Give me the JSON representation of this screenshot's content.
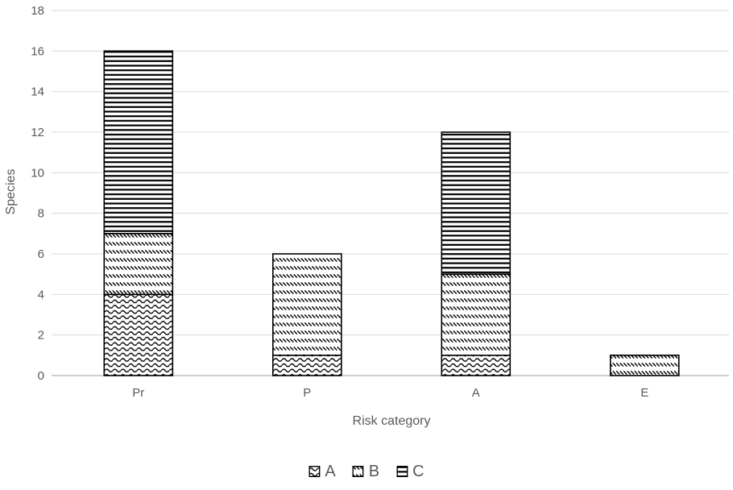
{
  "chart_data": {
    "type": "bar",
    "stacked": true,
    "title": "",
    "xlabel": "Risk category",
    "ylabel": "Species",
    "categories": [
      "Pr",
      "P",
      "A",
      "E"
    ],
    "series": [
      {
        "name": "A",
        "pattern": "wave",
        "values": [
          4,
          1,
          1,
          0
        ]
      },
      {
        "name": "B",
        "pattern": "diagonal-dash",
        "values": [
          3,
          5,
          4,
          1
        ]
      },
      {
        "name": "C",
        "pattern": "horizontal-lines",
        "values": [
          9,
          0,
          7,
          0
        ]
      }
    ],
    "totals": {
      "Pr": 16,
      "P": 6,
      "A": 12,
      "E": 1
    },
    "ylim": [
      0,
      18
    ],
    "ytick_step": 2,
    "yticks": [
      0,
      2,
      4,
      6,
      8,
      10,
      12,
      14,
      16,
      18
    ],
    "grid": true,
    "legend_position": "bottom",
    "colors": {
      "text": "#595959",
      "gridline": "#D9D9D9",
      "axis_line": "#CFCFCF",
      "pattern_fg": "#000000",
      "pattern_bg": "#FFFFFF",
      "bar_border": "#000000",
      "background": "#FFFFFF"
    }
  }
}
